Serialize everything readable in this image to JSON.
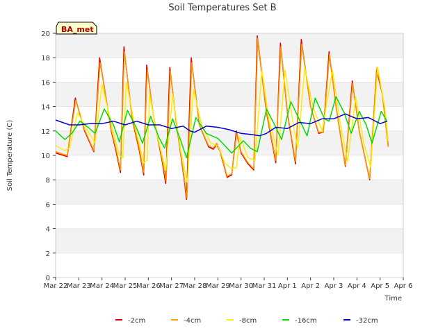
{
  "chart_data": {
    "type": "line",
    "title": "Soil Temperatures Set B",
    "xlabel": "Time",
    "ylabel": "Soil Temperature (C)",
    "ylim": [
      0,
      20
    ],
    "xlim": [
      0,
      15
    ],
    "yticks": [
      0,
      2,
      4,
      6,
      8,
      10,
      12,
      14,
      16,
      18,
      20
    ],
    "xticks": [
      {
        "x": 0,
        "label": "Mar 22"
      },
      {
        "x": 1,
        "label": "Mar 23"
      },
      {
        "x": 2,
        "label": "Mar 24"
      },
      {
        "x": 3,
        "label": "Mar 25"
      },
      {
        "x": 4,
        "label": "Mar 26"
      },
      {
        "x": 5,
        "label": "Mar 27"
      },
      {
        "x": 6,
        "label": "Mar 28"
      },
      {
        "x": 7,
        "label": "Mar 29"
      },
      {
        "x": 8,
        "label": "Mar 30"
      },
      {
        "x": 9,
        "label": "Mar 31"
      },
      {
        "x": 10,
        "label": "Apr 1"
      },
      {
        "x": 11,
        "label": "Apr 2"
      },
      {
        "x": 12,
        "label": "Apr 3"
      },
      {
        "x": 13,
        "label": "Apr 4"
      },
      {
        "x": 14,
        "label": "Apr 5"
      },
      {
        "x": 15,
        "label": "Apr 6"
      }
    ],
    "grid": "horizontal-bands",
    "legend_position": "bottom",
    "annotation": "BA_met",
    "series": [
      {
        "name": "-2cm",
        "color": "#dd0000",
        "points": [
          [
            0,
            10.2
          ],
          [
            0.5,
            9.9
          ],
          [
            0.85,
            14.7
          ],
          [
            1.25,
            12.0
          ],
          [
            1.65,
            10.3
          ],
          [
            1.9,
            18.0
          ],
          [
            2.4,
            12.0
          ],
          [
            2.6,
            10.4
          ],
          [
            2.8,
            8.6
          ],
          [
            2.95,
            18.9
          ],
          [
            3.3,
            13.0
          ],
          [
            3.6,
            10.5
          ],
          [
            3.8,
            8.4
          ],
          [
            3.93,
            17.4
          ],
          [
            4.2,
            13.5
          ],
          [
            4.6,
            9.5
          ],
          [
            4.75,
            7.7
          ],
          [
            4.93,
            17.2
          ],
          [
            5.2,
            12.8
          ],
          [
            5.55,
            8.0
          ],
          [
            5.65,
            6.4
          ],
          [
            5.85,
            18.0
          ],
          [
            6.2,
            12.5
          ],
          [
            6.6,
            10.7
          ],
          [
            6.8,
            10.5
          ],
          [
            6.95,
            10.9
          ],
          [
            7.1,
            10.3
          ],
          [
            7.4,
            8.2
          ],
          [
            7.6,
            8.4
          ],
          [
            7.8,
            12.0
          ],
          [
            8.0,
            10.2
          ],
          [
            8.3,
            9.3
          ],
          [
            8.55,
            8.8
          ],
          [
            8.7,
            19.8
          ],
          [
            9.1,
            13.5
          ],
          [
            9.5,
            9.4
          ],
          [
            9.7,
            19.2
          ],
          [
            10.0,
            13.5
          ],
          [
            10.35,
            9.3
          ],
          [
            10.6,
            19.5
          ],
          [
            11.0,
            14.0
          ],
          [
            11.35,
            11.8
          ],
          [
            11.55,
            11.9
          ],
          [
            11.8,
            18.5
          ],
          [
            12.1,
            14.0
          ],
          [
            12.5,
            9.1
          ],
          [
            12.8,
            16.1
          ],
          [
            13.1,
            12.0
          ],
          [
            13.55,
            8.0
          ],
          [
            13.85,
            17.0
          ],
          [
            14.1,
            15.0
          ],
          [
            14.35,
            10.8
          ]
        ]
      },
      {
        "name": "-4cm",
        "color": "#ff9900",
        "points": [
          [
            0,
            10.3
          ],
          [
            0.5,
            10.0
          ],
          [
            0.87,
            14.5
          ],
          [
            1.25,
            12.1
          ],
          [
            1.65,
            10.4
          ],
          [
            1.92,
            17.6
          ],
          [
            2.4,
            12.1
          ],
          [
            2.6,
            10.6
          ],
          [
            2.8,
            8.8
          ],
          [
            2.97,
            18.5
          ],
          [
            3.3,
            13.1
          ],
          [
            3.6,
            10.7
          ],
          [
            3.8,
            8.6
          ],
          [
            3.95,
            17.0
          ],
          [
            4.2,
            13.5
          ],
          [
            4.6,
            9.7
          ],
          [
            4.77,
            7.9
          ],
          [
            4.95,
            16.9
          ],
          [
            5.2,
            12.8
          ],
          [
            5.55,
            8.2
          ],
          [
            5.67,
            6.5
          ],
          [
            5.87,
            17.6
          ],
          [
            6.2,
            12.5
          ],
          [
            6.6,
            10.8
          ],
          [
            6.8,
            10.6
          ],
          [
            6.95,
            11.0
          ],
          [
            7.1,
            10.4
          ],
          [
            7.4,
            8.3
          ],
          [
            7.6,
            8.5
          ],
          [
            7.82,
            11.9
          ],
          [
            8.0,
            10.3
          ],
          [
            8.3,
            9.4
          ],
          [
            8.55,
            8.9
          ],
          [
            8.72,
            19.6
          ],
          [
            9.1,
            13.6
          ],
          [
            9.5,
            9.6
          ],
          [
            9.72,
            18.9
          ],
          [
            10.0,
            13.6
          ],
          [
            10.35,
            9.5
          ],
          [
            10.62,
            19.1
          ],
          [
            11.0,
            14.0
          ],
          [
            11.35,
            11.9
          ],
          [
            11.55,
            11.9
          ],
          [
            11.82,
            18.3
          ],
          [
            12.1,
            14.0
          ],
          [
            12.5,
            9.2
          ],
          [
            12.82,
            15.9
          ],
          [
            13.1,
            12.0
          ],
          [
            13.55,
            8.1
          ],
          [
            13.87,
            17.2
          ],
          [
            14.1,
            15.0
          ],
          [
            14.35,
            10.7
          ]
        ]
      },
      {
        "name": "-8cm",
        "color": "#ffee00",
        "points": [
          [
            0,
            10.8
          ],
          [
            0.4,
            10.4
          ],
          [
            0.6,
            10.6
          ],
          [
            0.95,
            13.5
          ],
          [
            1.3,
            12.3
          ],
          [
            1.7,
            11.0
          ],
          [
            2.0,
            15.8
          ],
          [
            2.4,
            12.6
          ],
          [
            2.75,
            10.0
          ],
          [
            2.9,
            9.8
          ],
          [
            3.05,
            16.0
          ],
          [
            3.4,
            12.6
          ],
          [
            3.8,
            9.4
          ],
          [
            3.95,
            9.6
          ],
          [
            4.05,
            15.0
          ],
          [
            4.4,
            11.5
          ],
          [
            4.75,
            8.8
          ],
          [
            5.05,
            15.0
          ],
          [
            5.4,
            10.4
          ],
          [
            5.68,
            7.8
          ],
          [
            5.95,
            15.4
          ],
          [
            6.3,
            12.5
          ],
          [
            6.7,
            11.0
          ],
          [
            7.0,
            10.8
          ],
          [
            7.3,
            9.4
          ],
          [
            7.6,
            8.9
          ],
          [
            7.8,
            9.0
          ],
          [
            7.95,
            11.5
          ],
          [
            8.3,
            9.8
          ],
          [
            8.6,
            9.6
          ],
          [
            8.9,
            17.0
          ],
          [
            9.2,
            13.0
          ],
          [
            9.6,
            10.0
          ],
          [
            9.9,
            17.0
          ],
          [
            10.3,
            12.0
          ],
          [
            10.45,
            10.6
          ],
          [
            10.75,
            17.2
          ],
          [
            11.1,
            14.0
          ],
          [
            11.5,
            12.0
          ],
          [
            11.95,
            17.0
          ],
          [
            12.3,
            12.4
          ],
          [
            12.6,
            9.5
          ],
          [
            12.95,
            14.8
          ],
          [
            13.3,
            11.0
          ],
          [
            13.6,
            9.0
          ],
          [
            13.9,
            17.2
          ],
          [
            14.2,
            14.0
          ],
          [
            14.35,
            11.2
          ]
        ]
      },
      {
        "name": "-16cm",
        "color": "#00dd00",
        "points": [
          [
            0,
            12.0
          ],
          [
            0.4,
            11.3
          ],
          [
            0.7,
            11.8
          ],
          [
            1.05,
            12.8
          ],
          [
            1.4,
            12.3
          ],
          [
            1.7,
            11.8
          ],
          [
            2.1,
            13.8
          ],
          [
            2.5,
            12.5
          ],
          [
            2.75,
            11.1
          ],
          [
            3.1,
            13.7
          ],
          [
            3.5,
            12.2
          ],
          [
            3.75,
            11.0
          ],
          [
            4.1,
            13.2
          ],
          [
            4.45,
            11.5
          ],
          [
            4.7,
            10.6
          ],
          [
            5.05,
            13.0
          ],
          [
            5.4,
            11.2
          ],
          [
            5.65,
            9.8
          ],
          [
            6.05,
            13.1
          ],
          [
            6.5,
            11.8
          ],
          [
            7.0,
            11.4
          ],
          [
            7.3,
            10.8
          ],
          [
            7.6,
            10.2
          ],
          [
            8.1,
            11.2
          ],
          [
            8.4,
            10.6
          ],
          [
            8.7,
            10.3
          ],
          [
            9.1,
            13.8
          ],
          [
            9.45,
            12.5
          ],
          [
            9.75,
            11.3
          ],
          [
            10.15,
            14.4
          ],
          [
            10.5,
            13.0
          ],
          [
            10.85,
            11.6
          ],
          [
            11.2,
            14.7
          ],
          [
            11.6,
            13.0
          ],
          [
            11.8,
            12.8
          ],
          [
            12.1,
            14.8
          ],
          [
            12.45,
            13.5
          ],
          [
            12.75,
            11.8
          ],
          [
            13.1,
            13.6
          ],
          [
            13.4,
            12.5
          ],
          [
            13.65,
            11.0
          ],
          [
            14.05,
            13.6
          ],
          [
            14.3,
            12.8
          ]
        ]
      },
      {
        "name": "-32cm",
        "color": "#0000cc",
        "points": [
          [
            0,
            12.9
          ],
          [
            0.3,
            12.7
          ],
          [
            0.6,
            12.5
          ],
          [
            1.0,
            12.5
          ],
          [
            1.5,
            12.6
          ],
          [
            2.0,
            12.6
          ],
          [
            2.5,
            12.8
          ],
          [
            3.0,
            12.5
          ],
          [
            3.5,
            12.8
          ],
          [
            4.0,
            12.5
          ],
          [
            4.5,
            12.5
          ],
          [
            5.0,
            12.2
          ],
          [
            5.5,
            12.4
          ],
          [
            5.8,
            12.0
          ],
          [
            6.0,
            11.9
          ],
          [
            6.5,
            12.4
          ],
          [
            7.0,
            12.3
          ],
          [
            7.5,
            12.1
          ],
          [
            8.0,
            11.8
          ],
          [
            8.5,
            11.7
          ],
          [
            8.8,
            11.6
          ],
          [
            9.1,
            11.8
          ],
          [
            9.5,
            12.3
          ],
          [
            10.0,
            12.2
          ],
          [
            10.5,
            12.7
          ],
          [
            11.0,
            12.6
          ],
          [
            11.5,
            13.0
          ],
          [
            12.0,
            13.0
          ],
          [
            12.5,
            13.4
          ],
          [
            13.0,
            13.0
          ],
          [
            13.5,
            13.1
          ],
          [
            14.0,
            12.6
          ],
          [
            14.3,
            12.8
          ]
        ]
      }
    ]
  }
}
